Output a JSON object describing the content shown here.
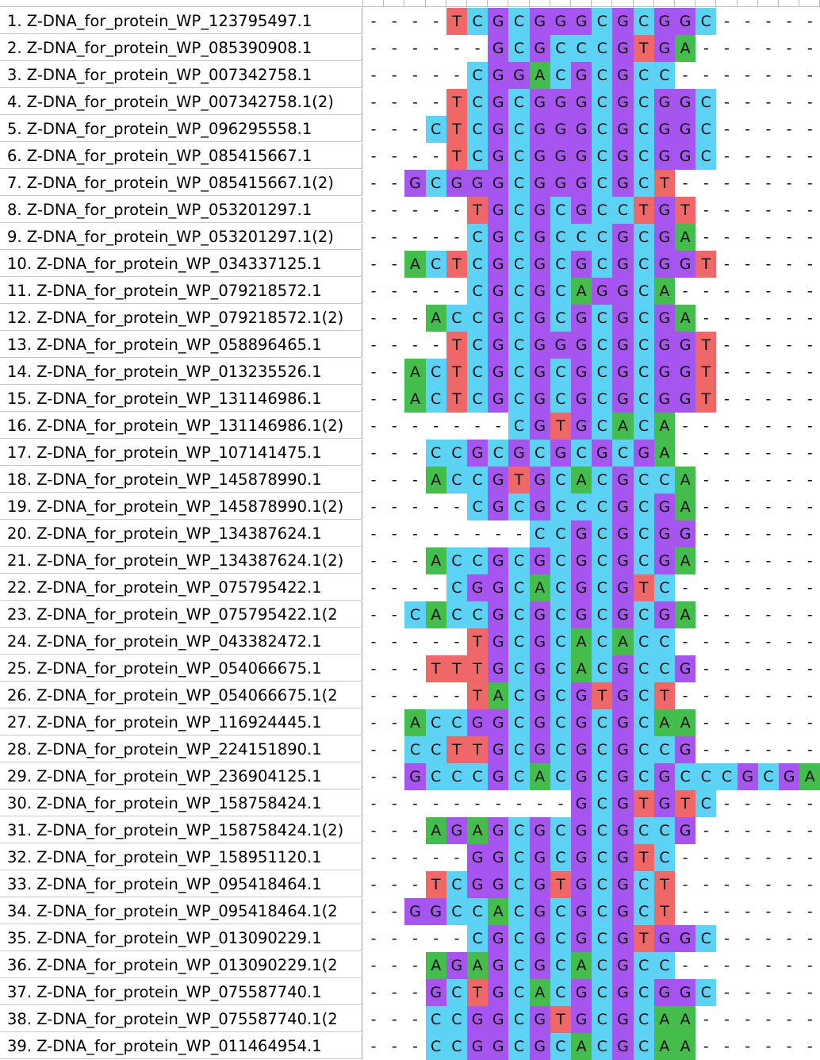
{
  "colors": {
    "A": "#44bd4c",
    "C": "#5cd3f5",
    "G": "#a755f0",
    "T": "#f06767"
  },
  "rows": [
    {
      "label": "1. Z-DNA_for_protein_WP_123795497.1",
      "sequence": "----TCGCGGGCGCGGC-----"
    },
    {
      "label": "2. Z-DNA_for_protein_WP_085390908.1",
      "sequence": "------GCGCCCGTGA------"
    },
    {
      "label": "3. Z-DNA_for_protein_WP_007342758.1",
      "sequence": "-----CGGACGCGCC-------"
    },
    {
      "label": "4. Z-DNA_for_protein_WP_007342758.1(2)",
      "sequence": "----TCGCGGGCGCGGC-----"
    },
    {
      "label": "5. Z-DNA_for_protein_WP_096295558.1",
      "sequence": "---CTCGCGGGCGCGGC-----"
    },
    {
      "label": "6. Z-DNA_for_protein_WP_085415667.1",
      "sequence": "----TCGCGGGCGCGGC-----"
    },
    {
      "label": "7. Z-DNA_for_protein_WP_085415667.1(2)",
      "sequence": "--GCGGGCGGGCGCT-------"
    },
    {
      "label": "8. Z-DNA_for_protein_WP_053201297.1",
      "sequence": "-----TGCGCGCCTGT------"
    },
    {
      "label": "9. Z-DNA_for_protein_WP_053201297.1(2)",
      "sequence": "-----CGCGCCCGCGA------"
    },
    {
      "label": "10. Z-DNA_for_protein_WP_034337125.1",
      "sequence": "--ACTCGCGCGCGCGGT-----"
    },
    {
      "label": "11. Z-DNA_for_protein_WP_079218572.1",
      "sequence": "-----CGCGCAGGCA-------"
    },
    {
      "label": "12. Z-DNA_for_protein_WP_079218572.1(2)",
      "sequence": "---ACCGCGCGCGCGA------"
    },
    {
      "label": "13. Z-DNA_for_protein_WP_058896465.1",
      "sequence": "----TCGCGGGCGCGGT-----"
    },
    {
      "label": "14. Z-DNA_for_protein_WP_013235526.1",
      "sequence": "--ACTCGCGCGCGCGGT-----"
    },
    {
      "label": "15. Z-DNA_for_protein_WP_131146986.1",
      "sequence": "--ACTCGCGCGCGCGGT-----"
    },
    {
      "label": "16. Z-DNA_for_protein_WP_131146986.1(2)",
      "sequence": "-------CGTGCACA-------"
    },
    {
      "label": "17. Z-DNA_for_protein_WP_107141475.1",
      "sequence": "---CCGCGCGCGCGA-------"
    },
    {
      "label": "18. Z-DNA_for_protein_WP_145878990.1",
      "sequence": "---ACCGTGCACGCCA------"
    },
    {
      "label": "19. Z-DNA_for_protein_WP_145878990.1(2)",
      "sequence": "-----CGCGCCCGCGA------"
    },
    {
      "label": "20. Z-DNA_for_protein_WP_134387624.1",
      "sequence": "--------CCGCGCGG------"
    },
    {
      "label": "21. Z-DNA_for_protein_WP_134387624.1(2)",
      "sequence": "---ACCGCGCGCGCGA------"
    },
    {
      "label": "22. Z-DNA_for_protein_WP_075795422.1",
      "sequence": "----CGGCACGCGTC-------"
    },
    {
      "label": "23. Z-DNA_for_protein_WP_075795422.1(2",
      "sequence": "--CACCGCGCGCGCGA------"
    },
    {
      "label": "24. Z-DNA_for_protein_WP_043382472.1",
      "sequence": "-----TGCGCACACC-------"
    },
    {
      "label": "25. Z-DNA_for_protein_WP_054066675.1",
      "sequence": "---TTTGCGCACGCCG------"
    },
    {
      "label": "26. Z-DNA_for_protein_WP_054066675.1(2",
      "sequence": "-----TACGCGTGCT-------"
    },
    {
      "label": "27. Z-DNA_for_protein_WP_116924445.1",
      "sequence": "--ACCGGCGCGCGCAA------"
    },
    {
      "label": "28. Z-DNA_for_protein_WP_224151890.1",
      "sequence": "--CCTTGCGCGCGCCG------"
    },
    {
      "label": "29. Z-DNA_for_protein_WP_236904125.1",
      "sequence": "--GCCCGCACGCGCGCCCGCGA"
    },
    {
      "label": "30. Z-DNA_for_protein_WP_158758424.1",
      "sequence": "----------GCGTGTC-----"
    },
    {
      "label": "31. Z-DNA_for_protein_WP_158758424.1(2)",
      "sequence": "---AGAGCGCGCGCCG------"
    },
    {
      "label": "32. Z-DNA_for_protein_WP_158951120.1",
      "sequence": "-----GGCGCGCGTC-------"
    },
    {
      "label": "33. Z-DNA_for_protein_WP_095418464.1",
      "sequence": "---TCGGCGTGCGCT-------"
    },
    {
      "label": "34. Z-DNA_for_protein_WP_095418464.1(2",
      "sequence": "--GGCCACGCGCGCT-------"
    },
    {
      "label": "35. Z-DNA_for_protein_WP_013090229.1",
      "sequence": "-----CGCGCGCGTGGC-----"
    },
    {
      "label": "36. Z-DNA_for_protein_WP_013090229.1(2",
      "sequence": "---AGAGCGCACGCC-------"
    },
    {
      "label": "37. Z-DNA_for_protein_WP_075587740.1",
      "sequence": "---GCTGCACGCGCGGC-----"
    },
    {
      "label": "38. Z-DNA_for_protein_WP_075587740.1(2",
      "sequence": "---CCGGCGTGCGCAA------"
    },
    {
      "label": "39. Z-DNA_for_protein_WP_011464954.1",
      "sequence": "---CCGGCGCACGCAA------"
    }
  ]
}
